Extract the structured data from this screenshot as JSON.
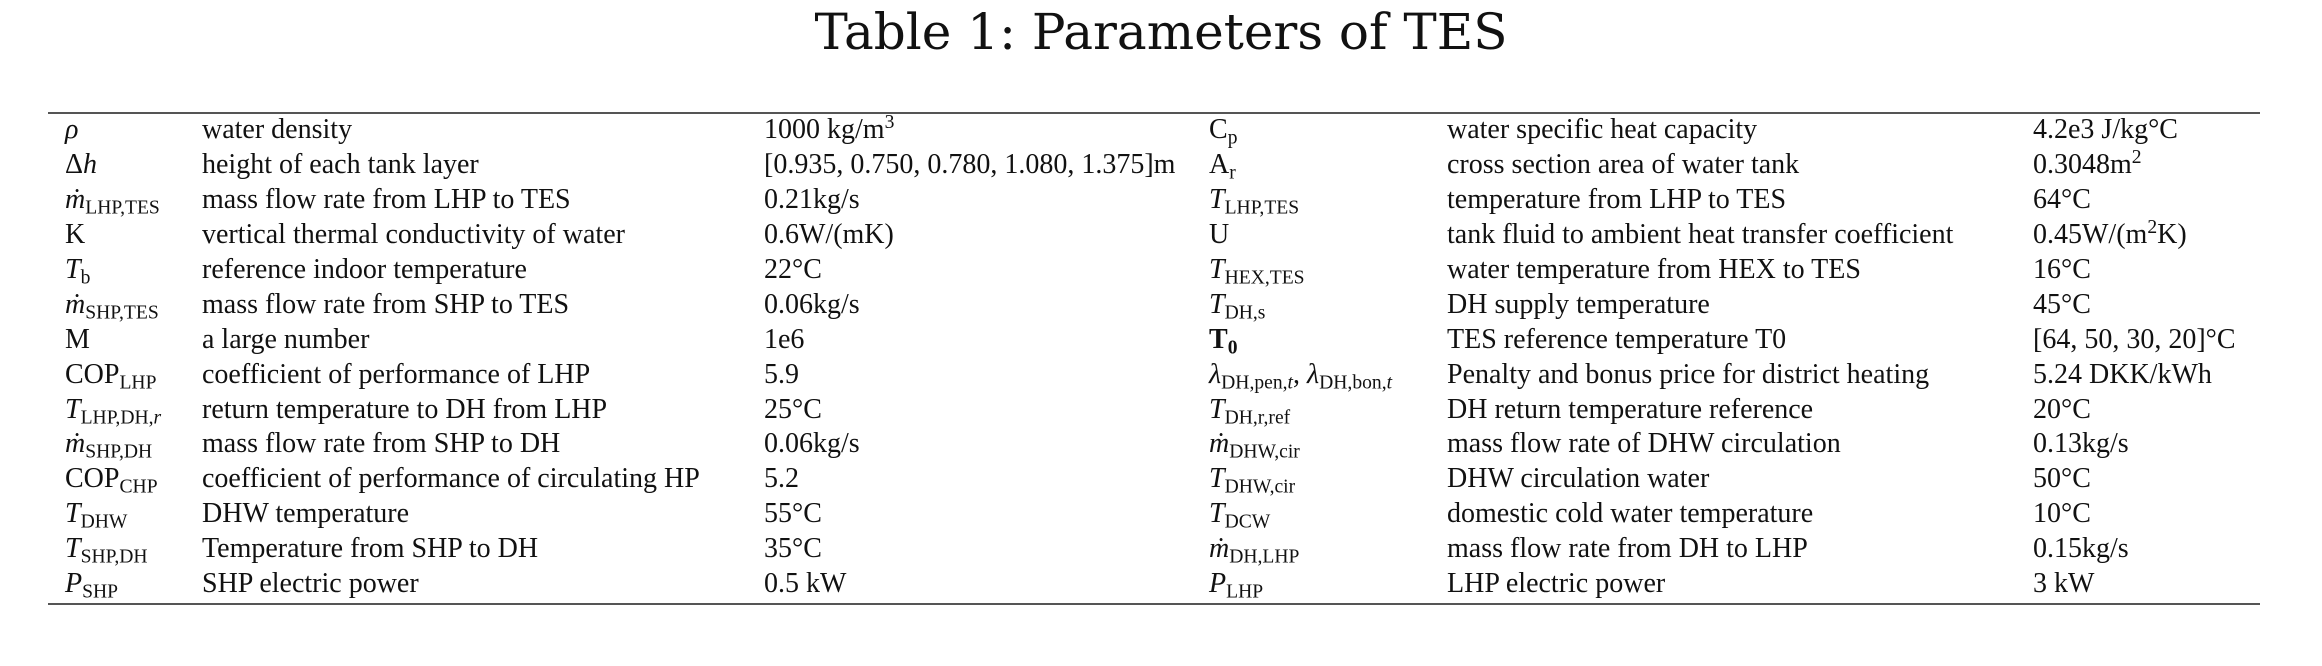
{
  "caption": "Table 1: Parameters of TES",
  "rows": [
    {
      "sym_left": "ρ",
      "desc_left": "water density",
      "val_left": "1000 kg/m³",
      "sym_right": "Cp",
      "desc_right": "water specific heat capacity",
      "val_right": "4.2e3 J/kg°C"
    },
    {
      "sym_left": "Δh",
      "desc_left": "height of each tank layer",
      "val_left": "[0.935, 0.750, 0.780, 1.080, 1.375]m",
      "sym_right": "Ar",
      "desc_right": "cross section area of water tank",
      "val_right": "0.3048m²"
    },
    {
      "sym_left": "ṁLHP,TES",
      "desc_left": "mass flow rate from LHP to TES",
      "val_left": "0.21kg/s",
      "sym_right": "TLHP,TES",
      "desc_right": "temperature from LHP to TES",
      "val_right": "64°C"
    },
    {
      "sym_left": "K",
      "desc_left": "vertical thermal conductivity of water",
      "val_left": "0.6W/(mK)",
      "sym_right": "U",
      "desc_right": "tank fluid to ambient heat transfer coefficient",
      "val_right": "0.45W/(m²K)"
    },
    {
      "sym_left": "Tb",
      "desc_left": "reference indoor temperature",
      "val_left": "22°C",
      "sym_right": "THEX,TES",
      "desc_right": "water temperature from HEX to TES",
      "val_right": "16°C"
    },
    {
      "sym_left": "ṁSHP,TES",
      "desc_left": "mass flow rate from SHP to TES",
      "val_left": "0.06kg/s",
      "sym_right": "TDH,s",
      "desc_right": "DH supply temperature",
      "val_right": "45°C"
    },
    {
      "sym_left": "M",
      "desc_left": "a large number",
      "val_left": "1e6",
      "sym_right": "T0",
      "desc_right": "TES reference temperature T0",
      "val_right": "[64, 50, 30, 20]°C"
    },
    {
      "sym_left": "COPLHP",
      "desc_left": "coefficient of performance of LHP",
      "val_left": "5.9",
      "sym_right": "λDH,pen,t, λDH,bon,t",
      "desc_right": "Penalty and bonus price for district heating",
      "val_right": "5.24 DKK/kWh"
    },
    {
      "sym_left": "TLHP,DH,r",
      "desc_left": "return temperature to DH from LHP",
      "val_left": "25°C",
      "sym_right": "TDH,r,ref",
      "desc_right": "DH return temperature reference",
      "val_right": "20°C"
    },
    {
      "sym_left": "ṁSHP,DH",
      "desc_left": "mass flow rate from SHP to DH",
      "val_left": "0.06kg/s",
      "sym_right": "ṁDHW,cir",
      "desc_right": "mass flow rate of DHW circulation",
      "val_right": "0.13kg/s"
    },
    {
      "sym_left": "COPCHP",
      "desc_left": "coefficient of performance of circulating HP",
      "val_left": "5.2",
      "sym_right": "TDHW,cir",
      "desc_right": "DHW circulation water",
      "val_right": "50°C"
    },
    {
      "sym_left": "TDHW",
      "desc_left": "DHW temperature",
      "val_left": "55°C",
      "sym_right": "TDCW",
      "desc_right": "domestic cold water temperature",
      "val_right": "10°C"
    },
    {
      "sym_left": "TSHP,DH",
      "desc_left": "Temperature from SHP to DH",
      "val_left": "35°C",
      "sym_right": "ṁDH,LHP",
      "desc_right": "mass flow rate from DH to LHP",
      "val_right": "0.15kg/s"
    },
    {
      "sym_left": "PSHP",
      "desc_left": "SHP electric power",
      "val_left": "0.5 kW",
      "sym_right": "PLHP",
      "desc_right": "LHP electric power",
      "val_right": "3 kW"
    }
  ]
}
